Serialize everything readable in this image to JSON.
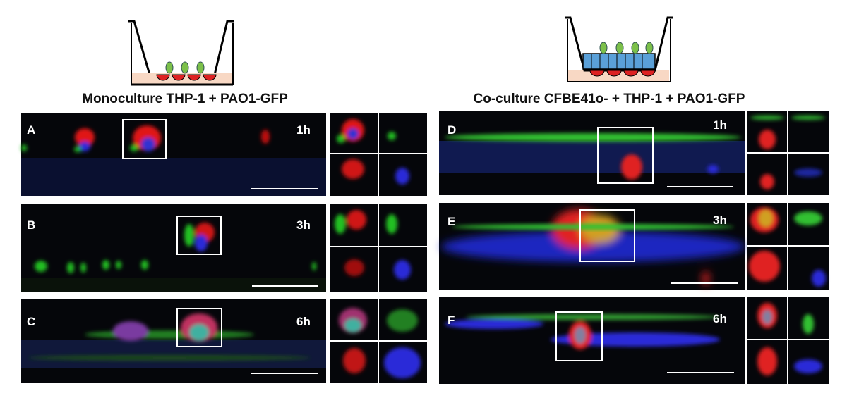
{
  "left": {
    "title": "Monoculture THP-1 + PAO1-GFP",
    "panels": [
      {
        "letter": "A",
        "time": "1h"
      },
      {
        "letter": "B",
        "time": "3h"
      },
      {
        "letter": "C",
        "time": "6h"
      }
    ]
  },
  "right": {
    "title": "Co-culture CFBE41o- + THP-1 + PAO1-GFP",
    "panels": [
      {
        "letter": "D",
        "time": "1h"
      },
      {
        "letter": "E",
        "time": "3h"
      },
      {
        "letter": "F",
        "time": "6h"
      }
    ]
  }
}
